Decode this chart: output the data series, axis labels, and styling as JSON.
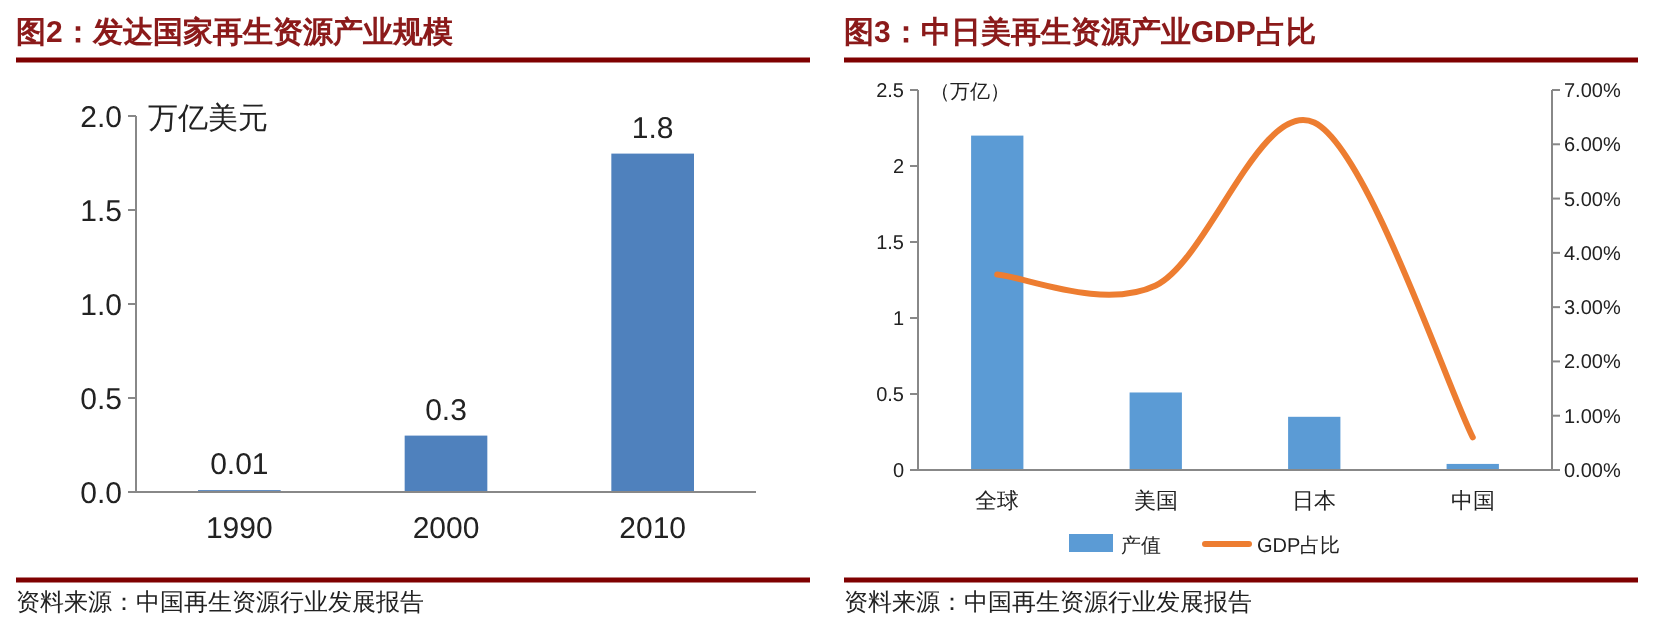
{
  "chart_data": [
    {
      "type": "bar",
      "title": "图2：发达国家再生资源产业规模",
      "ylabel": "万亿美元",
      "categories": [
        "1990",
        "2000",
        "2010"
      ],
      "values": [
        0.01,
        0.3,
        1.8
      ],
      "color": "#4f81bd",
      "data_labels": true,
      "ylim": [
        0,
        2
      ],
      "yticks": [
        {
          "value": 0,
          "label": "0.0"
        },
        {
          "value": 0.5,
          "label": "0.5"
        },
        {
          "value": 1,
          "label": "1.0"
        },
        {
          "value": 1.5,
          "label": "1.5"
        },
        {
          "value": 2,
          "label": "2.0"
        }
      ],
      "annotations": [
        "资料来源：中国再生资源行业发展报告"
      ]
    },
    {
      "type": "bar",
      "title": "图3：中日美再生资源产业GDP占比",
      "ylabel": "（万亿）",
      "categories": [
        "全球",
        "美国",
        "日本",
        "中国"
      ],
      "series": [
        {
          "name": "产值",
          "color": "#5b9bd5",
          "values": [
            2.2,
            0.51,
            0.35,
            0.04
          ]
        },
        {
          "name": "GDP占比",
          "type": "line",
          "axis": "y2",
          "color": "#ed7d31",
          "values": [
            3.6,
            3.4,
            6.4,
            0.6
          ]
        }
      ],
      "ylim": [
        0,
        2.5
      ],
      "yticks": [
        0,
        0.5,
        1,
        1.5,
        2,
        2.5
      ],
      "y2lim": [
        0,
        7
      ],
      "y2ticks": [
        {
          "value": 0,
          "label": "0.00%"
        },
        {
          "value": 1,
          "label": "1.00%"
        },
        {
          "value": 2,
          "label": "2.00%"
        },
        {
          "value": 3,
          "label": "3.00%"
        },
        {
          "value": 4,
          "label": "4.00%"
        },
        {
          "value": 5,
          "label": "5.00%"
        },
        {
          "value": 6,
          "label": "6.00%"
        },
        {
          "value": 7,
          "label": "7.00%"
        }
      ],
      "legend": "bottom",
      "annotations": [
        "资料来源：中国再生资源行业发展报告"
      ]
    }
  ]
}
